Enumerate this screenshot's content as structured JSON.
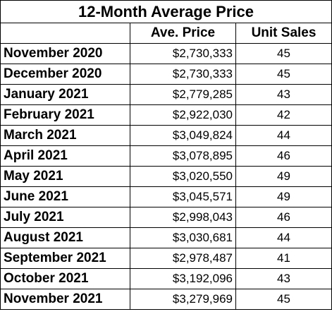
{
  "chart_data": {
    "type": "table",
    "title": "12-Month Average Price",
    "columns": [
      "",
      "Ave. Price",
      "Unit Sales"
    ],
    "rows": [
      {
        "month": "November 2020",
        "avg_price": "$2,730,333",
        "unit_sales": "45"
      },
      {
        "month": "December 2020",
        "avg_price": "$2,730,333",
        "unit_sales": "45"
      },
      {
        "month": "January 2021",
        "avg_price": "$2,779,285",
        "unit_sales": "43"
      },
      {
        "month": "February 2021",
        "avg_price": "$2,922,030",
        "unit_sales": "42"
      },
      {
        "month": "March 2021",
        "avg_price": "$3,049,824",
        "unit_sales": "44"
      },
      {
        "month": "April 2021",
        "avg_price": "$3,078,895",
        "unit_sales": "46"
      },
      {
        "month": "May 2021",
        "avg_price": "$3,020,550",
        "unit_sales": "49"
      },
      {
        "month": "June 2021",
        "avg_price": "$3,045,571",
        "unit_sales": "49"
      },
      {
        "month": "July 2021",
        "avg_price": "$2,998,043",
        "unit_sales": "46"
      },
      {
        "month": "August 2021",
        "avg_price": "$3,030,681",
        "unit_sales": "44"
      },
      {
        "month": "September 2021",
        "avg_price": "$2,978,487",
        "unit_sales": "41"
      },
      {
        "month": "October 2021",
        "avg_price": "$3,192,096",
        "unit_sales": "43"
      },
      {
        "month": "November 2021",
        "avg_price": "$3,279,969",
        "unit_sales": "45"
      }
    ]
  }
}
